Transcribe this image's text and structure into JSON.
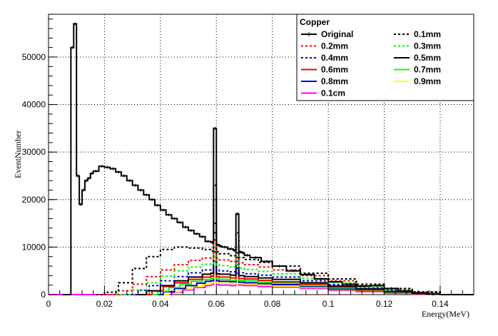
{
  "chart_data": {
    "type": "line",
    "style": "step-histogram",
    "xlabel": "Energy(MeV)",
    "ylabel": "EventNumber",
    "xlim": [
      0,
      0.152
    ],
    "ylim": [
      0,
      59000
    ],
    "grid": true,
    "legend_position": "top-right",
    "legend_title": "Copper",
    "x_ticks": [
      0,
      0.02,
      0.04,
      0.06,
      0.08,
      0.1,
      0.12,
      0.14
    ],
    "x_tick_labels": [
      "0",
      "0.02",
      "0.04",
      "0.06",
      "0.08",
      "0.1",
      "0.12",
      "0.14"
    ],
    "y_ticks": [
      0,
      10000,
      20000,
      30000,
      40000,
      50000
    ],
    "y_tick_labels": [
      "0",
      "10000",
      "20000",
      "30000",
      "40000",
      "50000"
    ],
    "series": [
      {
        "name": "Original",
        "color": "#000000",
        "dash": "solid",
        "marker": "star",
        "x": [
          0.005,
          0.0078,
          0.008,
          0.009,
          0.01,
          0.011,
          0.012,
          0.013,
          0.014,
          0.015,
          0.016,
          0.018,
          0.02,
          0.022,
          0.024,
          0.026,
          0.028,
          0.03,
          0.032,
          0.034,
          0.036,
          0.038,
          0.04,
          0.042,
          0.044,
          0.046,
          0.048,
          0.05,
          0.052,
          0.054,
          0.056,
          0.058,
          0.059,
          0.06,
          0.061,
          0.062,
          0.064,
          0.066,
          0.067,
          0.068,
          0.069,
          0.07,
          0.072,
          0.076,
          0.08,
          0.085,
          0.09,
          0.095,
          0.1,
          0.105,
          0.11,
          0.115,
          0.12,
          0.125,
          0.13,
          0.135,
          0.14,
          0.145,
          0.152
        ],
        "y": [
          0,
          0,
          52000,
          57000,
          25000,
          19000,
          22000,
          24000,
          24500,
          25500,
          26000,
          27000,
          26800,
          26500,
          25800,
          25000,
          24000,
          23000,
          22000,
          21000,
          20000,
          18800,
          17800,
          16800,
          16000,
          15200,
          14200,
          13500,
          12800,
          12200,
          11200,
          11000,
          35000,
          10500,
          10200,
          10000,
          9600,
          9300,
          17000,
          9000,
          8800,
          8300,
          7800,
          7000,
          6000,
          5000,
          4200,
          3300,
          2700,
          2200,
          1800,
          1900,
          1300,
          700,
          400,
          100,
          0,
          0,
          0
        ]
      },
      {
        "name": "0.1mm",
        "color": "#000000",
        "dash": "dotted",
        "x": [
          0.017,
          0.02,
          0.025,
          0.03,
          0.035,
          0.04,
          0.045,
          0.05,
          0.055,
          0.058,
          0.059,
          0.06,
          0.061,
          0.065,
          0.067,
          0.068,
          0.07,
          0.075,
          0.08,
          0.09,
          0.1,
          0.11,
          0.12,
          0.13,
          0.14,
          0.152
        ],
        "y": [
          0,
          500,
          2500,
          5500,
          8000,
          9500,
          10000,
          9800,
          9500,
          9200,
          23000,
          9000,
          8600,
          8200,
          13000,
          7800,
          7400,
          6800,
          6000,
          4500,
          3300,
          2200,
          1300,
          600,
          0,
          0
        ]
      },
      {
        "name": "0.2mm",
        "color": "#ff0000",
        "dash": "dotted",
        "x": [
          0.02,
          0.025,
          0.03,
          0.035,
          0.04,
          0.045,
          0.05,
          0.055,
          0.058,
          0.059,
          0.06,
          0.061,
          0.065,
          0.067,
          0.068,
          0.07,
          0.075,
          0.08,
          0.09,
          0.1,
          0.11,
          0.12,
          0.13,
          0.14,
          0.152
        ],
        "y": [
          0,
          800,
          2200,
          3800,
          5200,
          6300,
          7200,
          7700,
          7800,
          20000,
          7600,
          7300,
          7000,
          11500,
          6700,
          6300,
          5800,
          5200,
          4000,
          2900,
          1900,
          1100,
          500,
          0,
          0
        ]
      },
      {
        "name": "0.3mm",
        "color": "#00ff00",
        "dash": "dotted",
        "x": [
          0.024,
          0.03,
          0.035,
          0.04,
          0.045,
          0.05,
          0.055,
          0.058,
          0.059,
          0.06,
          0.061,
          0.065,
          0.067,
          0.068,
          0.07,
          0.075,
          0.08,
          0.09,
          0.1,
          0.11,
          0.12,
          0.13,
          0.14,
          0.152
        ],
        "y": [
          0,
          1000,
          2500,
          3900,
          5000,
          5800,
          6400,
          6500,
          17500,
          6300,
          6100,
          5800,
          10000,
          5600,
          5300,
          4900,
          4400,
          3400,
          2500,
          1600,
          900,
          400,
          0,
          0
        ]
      },
      {
        "name": "0.4mm",
        "color": "#0000cc",
        "dash": "dotted",
        "x": [
          0.028,
          0.032,
          0.036,
          0.04,
          0.045,
          0.05,
          0.055,
          0.058,
          0.059,
          0.06,
          0.061,
          0.065,
          0.067,
          0.068,
          0.07,
          0.075,
          0.08,
          0.09,
          0.1,
          0.11,
          0.12,
          0.13,
          0.14,
          0.152
        ],
        "y": [
          0,
          900,
          1900,
          2900,
          3800,
          4600,
          5200,
          5400,
          15000,
          5200,
          5000,
          4800,
          8800,
          4600,
          4400,
          4100,
          3700,
          2900,
          2100,
          1400,
          800,
          300,
          0,
          0
        ]
      },
      {
        "name": "0.5mm",
        "color": "#000000",
        "dash": "solid",
        "x": [
          0.031,
          0.035,
          0.04,
          0.045,
          0.05,
          0.055,
          0.058,
          0.059,
          0.06,
          0.061,
          0.065,
          0.067,
          0.068,
          0.07,
          0.075,
          0.08,
          0.09,
          0.1,
          0.11,
          0.12,
          0.13,
          0.14,
          0.152
        ],
        "y": [
          0,
          800,
          1900,
          2900,
          3700,
          4300,
          4500,
          13000,
          4400,
          4300,
          4100,
          7800,
          4000,
          3800,
          3500,
          3200,
          2500,
          1800,
          1200,
          700,
          300,
          0,
          0
        ]
      },
      {
        "name": "0.6mm",
        "color": "#ff0000",
        "dash": "solid",
        "x": [
          0.033,
          0.037,
          0.041,
          0.045,
          0.05,
          0.055,
          0.058,
          0.059,
          0.06,
          0.061,
          0.065,
          0.067,
          0.068,
          0.07,
          0.075,
          0.08,
          0.09,
          0.1,
          0.11,
          0.12,
          0.13,
          0.14,
          0.152
        ],
        "y": [
          0,
          800,
          1700,
          2500,
          3200,
          3700,
          3900,
          11500,
          3800,
          3700,
          3500,
          7000,
          3400,
          3300,
          3000,
          2700,
          2200,
          1600,
          1000,
          600,
          200,
          0,
          0
        ]
      },
      {
        "name": "0.7mm",
        "color": "#00ff00",
        "dash": "solid",
        "x": [
          0.035,
          0.039,
          0.043,
          0.047,
          0.051,
          0.055,
          0.058,
          0.059,
          0.06,
          0.061,
          0.065,
          0.067,
          0.068,
          0.07,
          0.075,
          0.08,
          0.09,
          0.1,
          0.11,
          0.12,
          0.13,
          0.14,
          0.152
        ],
        "y": [
          0,
          700,
          1500,
          2200,
          2800,
          3200,
          3400,
          10000,
          3300,
          3200,
          3000,
          6300,
          3000,
          2900,
          2600,
          2400,
          1900,
          1400,
          900,
          500,
          200,
          0,
          0
        ]
      },
      {
        "name": "0.8mm",
        "color": "#0000cc",
        "dash": "solid",
        "x": [
          0.037,
          0.041,
          0.045,
          0.049,
          0.053,
          0.056,
          0.058,
          0.059,
          0.06,
          0.061,
          0.065,
          0.067,
          0.068,
          0.07,
          0.075,
          0.08,
          0.09,
          0.1,
          0.11,
          0.12,
          0.13,
          0.14,
          0.152
        ],
        "y": [
          0,
          600,
          1300,
          1900,
          2400,
          2800,
          2900,
          9000,
          2900,
          2800,
          2700,
          5600,
          2600,
          2500,
          2300,
          2100,
          1700,
          1200,
          800,
          400,
          150,
          0,
          0
        ]
      },
      {
        "name": "0.9mm",
        "color": "#ffff00",
        "dash": "solid",
        "x": [
          0.039,
          0.043,
          0.047,
          0.051,
          0.055,
          0.058,
          0.059,
          0.06,
          0.061,
          0.065,
          0.067,
          0.068,
          0.07,
          0.075,
          0.08,
          0.09,
          0.1,
          0.11,
          0.12,
          0.13,
          0.14,
          0.152
        ],
        "y": [
          0,
          600,
          1200,
          1700,
          2200,
          2500,
          8000,
          2500,
          2400,
          2300,
          5000,
          2300,
          2200,
          2000,
          1800,
          1500,
          1100,
          700,
          400,
          150,
          0,
          0
        ]
      },
      {
        "name": "0.1cm",
        "color": "#ff00ff",
        "dash": "solid",
        "x": [
          0.0,
          0.04,
          0.044,
          0.048,
          0.052,
          0.056,
          0.058,
          0.059,
          0.06,
          0.061,
          0.065,
          0.067,
          0.068,
          0.07,
          0.075,
          0.08,
          0.09,
          0.1,
          0.11,
          0.12,
          0.13,
          0.14,
          0.152
        ],
        "y": [
          0,
          0,
          500,
          1000,
          1500,
          1900,
          2100,
          7000,
          2100,
          2000,
          1900,
          4500,
          2000,
          1900,
          1700,
          1600,
          1300,
          900,
          600,
          350,
          100,
          0,
          0
        ]
      }
    ]
  }
}
